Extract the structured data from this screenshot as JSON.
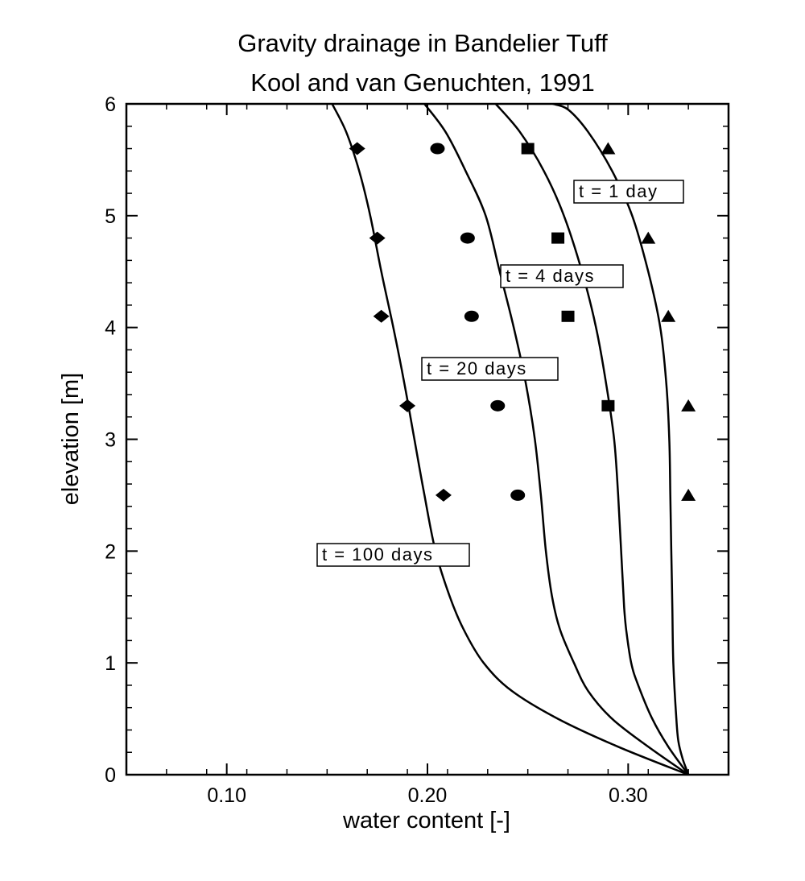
{
  "chart_data": {
    "type": "line",
    "title": "Gravity drainage in Bandelier Tuff",
    "subtitle": "Kool and van Genuchten, 1991",
    "xlabel": "water content [-]",
    "ylabel": "elevation [m]",
    "xlim": [
      0.05,
      0.35
    ],
    "ylim": [
      0,
      6
    ],
    "x_ticks": [
      {
        "value": 0.1,
        "label": "0.10"
      },
      {
        "value": 0.2,
        "label": "0.20"
      },
      {
        "value": 0.3,
        "label": "0.30"
      }
    ],
    "y_ticks": [
      {
        "value": 0,
        "label": "0"
      },
      {
        "value": 1,
        "label": "1"
      },
      {
        "value": 2,
        "label": "2"
      },
      {
        "value": 3,
        "label": "3"
      },
      {
        "value": 4,
        "label": "4"
      },
      {
        "value": 5,
        "label": "5"
      },
      {
        "value": 6,
        "label": "6"
      }
    ],
    "grid": false,
    "series": [
      {
        "label": "t = 1 day",
        "marker": "triangle",
        "curve": [
          [
            0.33,
            0.0
          ],
          [
            0.329,
            0.05
          ],
          [
            0.327,
            0.15
          ],
          [
            0.325,
            0.3
          ],
          [
            0.324,
            0.5
          ],
          [
            0.3225,
            1.0
          ],
          [
            0.322,
            1.5
          ],
          [
            0.3215,
            2.0
          ],
          [
            0.321,
            2.5
          ],
          [
            0.3205,
            3.0
          ],
          [
            0.319,
            3.5
          ],
          [
            0.316,
            4.0
          ],
          [
            0.31,
            4.5
          ],
          [
            0.302,
            5.0
          ],
          [
            0.292,
            5.4
          ],
          [
            0.28,
            5.75
          ],
          [
            0.27,
            5.95
          ],
          [
            0.2625,
            6.0
          ]
        ],
        "points": [
          [
            0.29,
            5.6
          ],
          [
            0.31,
            4.8
          ],
          [
            0.32,
            4.1
          ],
          [
            0.33,
            3.3
          ],
          [
            0.33,
            2.5
          ]
        ]
      },
      {
        "label": "t = 4 days",
        "marker": "square",
        "curve": [
          [
            0.33,
            0.0
          ],
          [
            0.32,
            0.25
          ],
          [
            0.312,
            0.5
          ],
          [
            0.305,
            0.8
          ],
          [
            0.3015,
            1.0
          ],
          [
            0.299,
            1.3
          ],
          [
            0.298,
            1.5
          ],
          [
            0.2965,
            2.0
          ],
          [
            0.295,
            2.5
          ],
          [
            0.293,
            3.0
          ],
          [
            0.289,
            3.5
          ],
          [
            0.284,
            4.0
          ],
          [
            0.277,
            4.5
          ],
          [
            0.268,
            5.0
          ],
          [
            0.258,
            5.4
          ],
          [
            0.246,
            5.75
          ],
          [
            0.234,
            6.0
          ]
        ],
        "points": [
          [
            0.25,
            5.6
          ],
          [
            0.265,
            4.8
          ],
          [
            0.27,
            4.1
          ],
          [
            0.29,
            3.3
          ]
        ]
      },
      {
        "label": "t = 20 days",
        "marker": "circle",
        "curve": [
          [
            0.33,
            0.0
          ],
          [
            0.31,
            0.25
          ],
          [
            0.292,
            0.5
          ],
          [
            0.28,
            0.75
          ],
          [
            0.273,
            1.0
          ],
          [
            0.266,
            1.3
          ],
          [
            0.262,
            1.6
          ],
          [
            0.259,
            2.0
          ],
          [
            0.2565,
            2.5
          ],
          [
            0.2535,
            3.0
          ],
          [
            0.249,
            3.5
          ],
          [
            0.243,
            4.0
          ],
          [
            0.236,
            4.5
          ],
          [
            0.229,
            5.0
          ],
          [
            0.219,
            5.4
          ],
          [
            0.209,
            5.75
          ],
          [
            0.1985,
            6.0
          ]
        ],
        "points": [
          [
            0.205,
            5.6
          ],
          [
            0.22,
            4.8
          ],
          [
            0.222,
            4.1
          ],
          [
            0.235,
            3.3
          ],
          [
            0.245,
            2.5
          ]
        ]
      },
      {
        "label": "t = 100 days",
        "marker": "diamond",
        "curve": [
          [
            0.33,
            0.0
          ],
          [
            0.295,
            0.25
          ],
          [
            0.265,
            0.5
          ],
          [
            0.242,
            0.75
          ],
          [
            0.228,
            1.0
          ],
          [
            0.218,
            1.3
          ],
          [
            0.211,
            1.6
          ],
          [
            0.204,
            2.0
          ],
          [
            0.1985,
            2.5
          ],
          [
            0.1935,
            3.0
          ],
          [
            0.1885,
            3.5
          ],
          [
            0.183,
            4.0
          ],
          [
            0.177,
            4.5
          ],
          [
            0.1715,
            5.0
          ],
          [
            0.166,
            5.4
          ],
          [
            0.1595,
            5.75
          ],
          [
            0.1525,
            6.0
          ]
        ],
        "points": [
          [
            0.165,
            5.6
          ],
          [
            0.175,
            4.8
          ],
          [
            0.177,
            4.1
          ],
          [
            0.19,
            3.3
          ],
          [
            0.208,
            2.5
          ]
        ]
      }
    ],
    "annotations": [
      "t = 1 day",
      "t = 4 days",
      "t = 20 days",
      "t = 100 days"
    ]
  }
}
